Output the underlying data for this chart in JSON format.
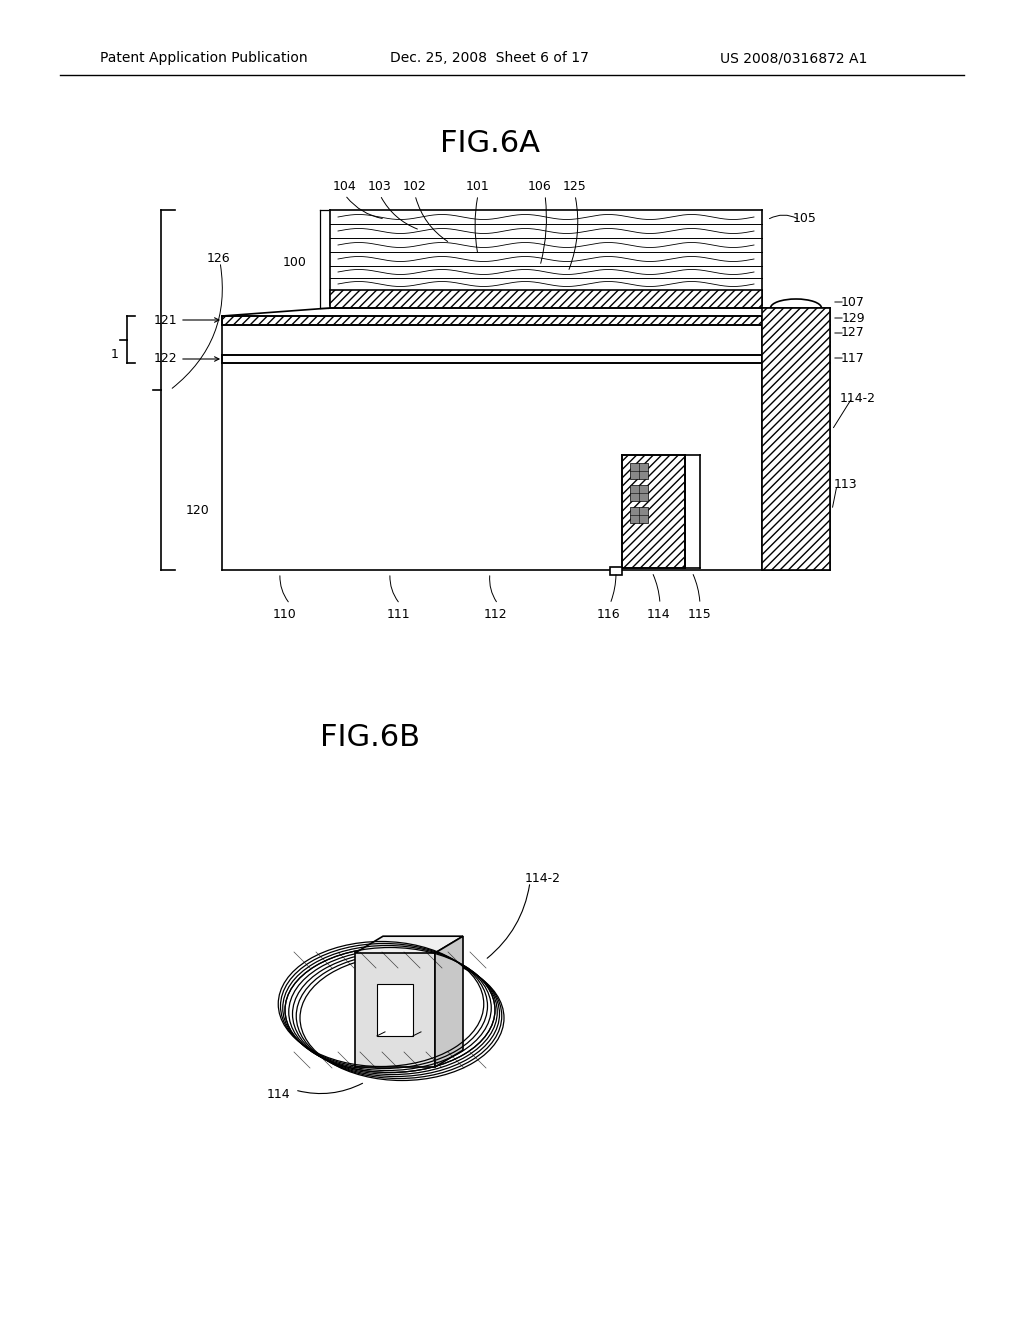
{
  "bg_color": "#ffffff",
  "header_left": "Patent Application Publication",
  "header_center": "Dec. 25, 2008  Sheet 6 of 17",
  "header_right": "US 2008/0316872 A1",
  "fig6a_title": "FIG.6A",
  "fig6b_title": "FIG.6B",
  "line_color": "#000000",
  "label_fontsize": 9,
  "title_fontsize": 22,
  "header_fontsize": 10
}
